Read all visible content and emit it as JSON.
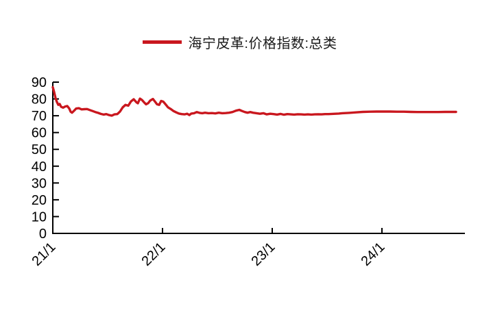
{
  "page": {
    "background": "#ffffff"
  },
  "legend": {
    "label": "海宁皮革:价格指数:总类",
    "swatch_color": "#c9171e"
  },
  "chart_data": {
    "type": "line",
    "title": "",
    "xlabel": "",
    "ylabel": "",
    "grid": false,
    "legend_position": "top-center",
    "x_unit": "months_since_2021_01",
    "xticks": [
      {
        "t": 0,
        "label": "21/1"
      },
      {
        "t": 12,
        "label": "22/1"
      },
      {
        "t": 24,
        "label": "23/1"
      },
      {
        "t": 36,
        "label": "24/1"
      }
    ],
    "xlim": [
      0,
      45
    ],
    "ylim": [
      0,
      90
    ],
    "yticks": [
      0,
      10,
      20,
      30,
      40,
      50,
      60,
      70,
      80,
      90
    ],
    "axis_color": "#000000",
    "series": [
      {
        "name": "海宁皮革:价格指数:总类",
        "color": "#c9171e",
        "points": [
          [
            0,
            87
          ],
          [
            0.15,
            84
          ],
          [
            0.3,
            80.5
          ],
          [
            0.45,
            78.2
          ],
          [
            0.6,
            76.5
          ],
          [
            0.75,
            77
          ],
          [
            0.9,
            75.4
          ],
          [
            1.13,
            74.8
          ],
          [
            1.35,
            75.5
          ],
          [
            1.58,
            75.8
          ],
          [
            1.8,
            74.3
          ],
          [
            1.95,
            72.4
          ],
          [
            2.1,
            71.8
          ],
          [
            2.33,
            73
          ],
          [
            2.55,
            74.3
          ],
          [
            2.85,
            74.5
          ],
          [
            3.15,
            73.8
          ],
          [
            3.45,
            73.9
          ],
          [
            3.75,
            74
          ],
          [
            4.05,
            73.4
          ],
          [
            4.35,
            72.8
          ],
          [
            4.65,
            72.2
          ],
          [
            4.95,
            71.7
          ],
          [
            5.25,
            71.1
          ],
          [
            5.55,
            70.7
          ],
          [
            5.85,
            71
          ],
          [
            6.15,
            70.4
          ],
          [
            6.45,
            70.1
          ],
          [
            6.75,
            70.8
          ],
          [
            7.05,
            71
          ],
          [
            7.35,
            72.5
          ],
          [
            7.65,
            75
          ],
          [
            7.95,
            76.5
          ],
          [
            8.25,
            76
          ],
          [
            8.55,
            78.5
          ],
          [
            8.85,
            79.8
          ],
          [
            9.15,
            78
          ],
          [
            9.3,
            77.4
          ],
          [
            9.53,
            80.2
          ],
          [
            9.75,
            79.4
          ],
          [
            9.98,
            78
          ],
          [
            10.2,
            76.8
          ],
          [
            10.43,
            77.5
          ],
          [
            10.65,
            79
          ],
          [
            10.95,
            80
          ],
          [
            11.18,
            78.4
          ],
          [
            11.4,
            76.8
          ],
          [
            11.63,
            76.5
          ],
          [
            11.85,
            78.8
          ],
          [
            12.08,
            78.4
          ],
          [
            12.3,
            77
          ],
          [
            12.6,
            75
          ],
          [
            12.9,
            74
          ],
          [
            13.2,
            72.8
          ],
          [
            13.5,
            72
          ],
          [
            13.8,
            71.3
          ],
          [
            14.1,
            71
          ],
          [
            14.4,
            70.8
          ],
          [
            14.7,
            71.2
          ],
          [
            14.93,
            70.4
          ],
          [
            15.15,
            71.3
          ],
          [
            15.45,
            71.5
          ],
          [
            15.75,
            72.2
          ],
          [
            16.05,
            71.7
          ],
          [
            16.35,
            71.5
          ],
          [
            16.65,
            71.8
          ],
          [
            17.03,
            71.5
          ],
          [
            17.4,
            71.6
          ],
          [
            17.78,
            71.4
          ],
          [
            18.15,
            71.8
          ],
          [
            18.53,
            71.5
          ],
          [
            18.9,
            71.6
          ],
          [
            19.28,
            71.8
          ],
          [
            19.65,
            72.2
          ],
          [
            20.03,
            73
          ],
          [
            20.4,
            73.5
          ],
          [
            20.7,
            72.8
          ],
          [
            21,
            72.2
          ],
          [
            21.3,
            71.8
          ],
          [
            21.6,
            72.2
          ],
          [
            21.9,
            71.8
          ],
          [
            22.28,
            71.5
          ],
          [
            22.65,
            71.2
          ],
          [
            23.03,
            71.5
          ],
          [
            23.4,
            70.8
          ],
          [
            23.78,
            71.2
          ],
          [
            24.15,
            71
          ],
          [
            24.53,
            70.7
          ],
          [
            24.9,
            71.1
          ],
          [
            25.28,
            70.6
          ],
          [
            25.65,
            71
          ],
          [
            26.03,
            70.8
          ],
          [
            26.4,
            70.7
          ],
          [
            26.78,
            70.9
          ],
          [
            27.15,
            70.8
          ],
          [
            27.53,
            70.7
          ],
          [
            27.9,
            70.8
          ],
          [
            28.28,
            70.7
          ],
          [
            28.65,
            70.8
          ],
          [
            29.03,
            70.9
          ],
          [
            29.4,
            70.8
          ],
          [
            29.78,
            71
          ],
          [
            30.15,
            71
          ],
          [
            30.53,
            71.1
          ],
          [
            30.9,
            71.2
          ],
          [
            31.28,
            71.3
          ],
          [
            31.65,
            71.5
          ],
          [
            32.4,
            71.7
          ],
          [
            33.15,
            72
          ],
          [
            33.9,
            72.3
          ],
          [
            34.65,
            72.4
          ],
          [
            35.4,
            72.5
          ],
          [
            36.15,
            72.5
          ],
          [
            36.9,
            72.5
          ],
          [
            37.65,
            72.4
          ],
          [
            38.4,
            72.4
          ],
          [
            39.15,
            72.3
          ],
          [
            39.9,
            72.2
          ],
          [
            40.65,
            72.2
          ],
          [
            41.4,
            72.2
          ],
          [
            42.15,
            72.2
          ],
          [
            42.9,
            72.3
          ],
          [
            43.65,
            72.3
          ],
          [
            44.1,
            72.3
          ]
        ]
      }
    ]
  }
}
